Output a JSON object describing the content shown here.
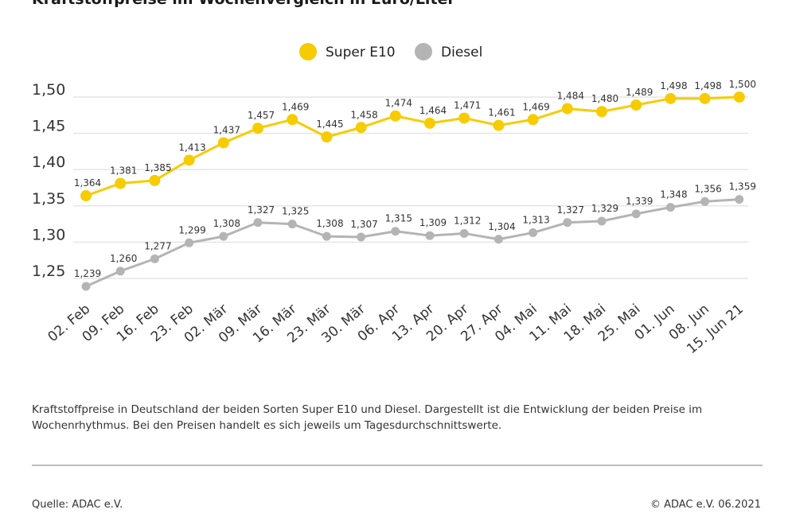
{
  "title": "Kraftstoffpreise im Wochenvergleich in Euro/Liter",
  "caption": "Kraftstoffpreise in Deutschland der beiden Sorten Super E10 und Diesel. Dargestellt ist die Entwicklung der beiden Preise im Wochenrhythmus. Bei den Preisen handelt es sich jeweils um Tagesdurchschnittswerte.",
  "source": "Quelle: ADAC e.V.",
  "copyright": "© ADAC e.V. 06.2021",
  "colors": {
    "super": "#F6CC00",
    "diesel": "#B4B4B4",
    "grid": "#e6e6e6"
  },
  "chart_data": {
    "type": "line",
    "title": "Kraftstoffpreise im Wochenvergleich in Euro/Liter",
    "xlabel": "",
    "ylabel": "",
    "ylim": [
      1.2,
      1.52
    ],
    "yticks": [
      1.25,
      1.3,
      1.35,
      1.4,
      1.45,
      1.5
    ],
    "ytick_labels": [
      "1,25",
      "1,30",
      "1,35",
      "1,40",
      "1,45",
      "1,50"
    ],
    "grid": true,
    "legend": "top-center",
    "categories": [
      "02. Feb",
      "09. Feb",
      "16. Feb",
      "23. Feb",
      "02. Mär",
      "09. Mär",
      "16. Mär",
      "23. Mär",
      "30. Mär",
      "06. Apr",
      "13. Apr",
      "20. Apr",
      "27. Apr",
      "04. Mai",
      "11. Mai",
      "18. Mai",
      "25. Mai",
      "01. Jun",
      "08. Jun",
      "15. Jun 21"
    ],
    "series": [
      {
        "name": "Super E10",
        "color": "#F6CC00",
        "values": [
          1.364,
          1.381,
          1.385,
          1.413,
          1.437,
          1.457,
          1.469,
          1.445,
          1.458,
          1.474,
          1.464,
          1.471,
          1.461,
          1.469,
          1.484,
          1.48,
          1.489,
          1.498,
          1.498,
          1.5
        ],
        "labels": [
          "1,364",
          "1,381",
          "1,385",
          "1,413",
          "1,437",
          "1,457",
          "1,469",
          "1,445",
          "1,458",
          "1,474",
          "1,464",
          "1,471",
          "1,461",
          "1,469",
          "1,484",
          "1,480",
          "1,489",
          "1,498",
          "1,498",
          "1,500"
        ]
      },
      {
        "name": "Diesel",
        "color": "#B4B4B4",
        "values": [
          1.239,
          1.26,
          1.277,
          1.299,
          1.308,
          1.327,
          1.325,
          1.308,
          1.307,
          1.315,
          1.309,
          1.312,
          1.304,
          1.313,
          1.327,
          1.329,
          1.339,
          1.348,
          1.356,
          1.359
        ],
        "labels": [
          "1,239",
          "1,260",
          "1,277",
          "1,299",
          "1,308",
          "1,327",
          "1,325",
          "1,308",
          "1,307",
          "1,315",
          "1,309",
          "1,312",
          "1,304",
          "1,313",
          "1,327",
          "1,329",
          "1,339",
          "1,348",
          "1,356",
          "1,359"
        ]
      }
    ]
  }
}
